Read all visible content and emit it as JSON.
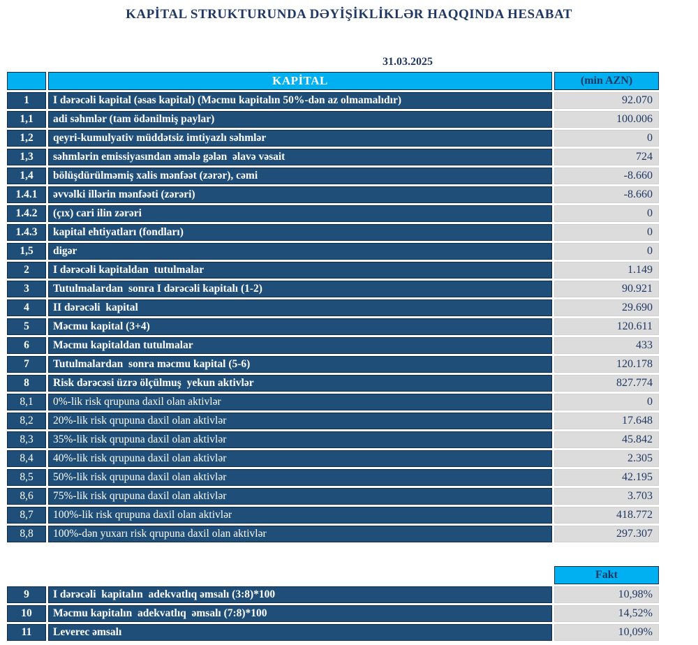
{
  "report": {
    "title": "KAPİTAL STRUKTURUNDA DƏYİŞİKLİKLƏR HAQQINDA HESABAT",
    "date": "31.03.2025"
  },
  "colors": {
    "header_cyan": "#00b0f0",
    "row_navy": "#1f4e79",
    "value_gray": "#dcdcdc",
    "text_navy": "#1f3864",
    "text_white": "#ffffff"
  },
  "table": {
    "header": {
      "number": "",
      "capital": "KAPİTAL",
      "unit": "(min AZN)"
    },
    "rows": [
      {
        "num": "1",
        "label": "I dərəcəli kapital (əsas kapital) (Məcmu kapitalın 50%-dən az olmamalıdır)",
        "value": "92.070",
        "bold": true
      },
      {
        "num": "1,1",
        "label": "adi səhmlər (tam ödənilmiş paylar)",
        "value": "100.006",
        "bold": true
      },
      {
        "num": "1,2",
        "label": "qeyri-kumulyativ müddətsiz imtiyazlı səhmlər",
        "value": "0",
        "bold": true
      },
      {
        "num": "1,3",
        "label": "səhmlərin emissiyasından əmələ gələn  əlavə vəsait",
        "value": "724",
        "bold": true
      },
      {
        "num": "1,4",
        "label": "bölüşdürülməmiş xalis mənfəət (zərər), cəmi",
        "value": "-8.660",
        "bold": true
      },
      {
        "num": "1.4.1",
        "label": "əvvəlki illərin mənfəəti (zərəri)",
        "value": "-8.660",
        "bold": true
      },
      {
        "num": "1.4.2",
        "label": "(çıx) cari ilin zərəri",
        "value": "0",
        "bold": true
      },
      {
        "num": "1.4.3",
        "label": "kapital ehtiyatları (fondları)",
        "value": "0",
        "bold": true
      },
      {
        "num": "1,5",
        "label": "digər",
        "value": "0",
        "bold": true
      },
      {
        "num": "2",
        "label": "I dərəcəli kapitaldan  tutulmalar",
        "value": "1.149",
        "bold": true
      },
      {
        "num": "3",
        "label": "Tutulmalardan  sonra I dərəcəli kapitalı (1-2)",
        "value": "90.921",
        "bold": true
      },
      {
        "num": "4",
        "label": "II dərəcəli  kapital",
        "value": "29.690",
        "bold": true
      },
      {
        "num": "5",
        "label": "Məcmu kapital (3+4)",
        "value": "120.611",
        "bold": true
      },
      {
        "num": "6",
        "label": "Məcmu kapitaldan tutulmalar",
        "value": "433",
        "bold": true
      },
      {
        "num": "7",
        "label": "Tutulmalardan  sonra məcmu kapital (5-6)",
        "value": "120.178",
        "bold": true
      },
      {
        "num": "8",
        "label": "Risk dərəcəsi üzrə ölçülmuş  yekun aktivlər",
        "value": "827.774",
        "bold": true
      },
      {
        "num": "8,1",
        "label": "0%-lik risk qrupuna daxil olan aktivlər",
        "value": "0",
        "bold": false
      },
      {
        "num": "8,2",
        "label": "20%-lik risk qrupuna daxil olan aktivlər",
        "value": "17.648",
        "bold": false
      },
      {
        "num": "8,3",
        "label": "35%-lik risk qrupuna daxil olan aktivlər",
        "value": "45.842",
        "bold": false
      },
      {
        "num": "8,4",
        "label": "40%-lik risk qrupuna daxil olan aktivlər",
        "value": "2.305",
        "bold": false
      },
      {
        "num": "8,5",
        "label": "50%-lik risk qrupuna daxil olan aktivlər",
        "value": "42.195",
        "bold": false
      },
      {
        "num": "8,6",
        "label": "75%-lik risk qrupuna daxil olan aktivlər",
        "value": "3.703",
        "bold": false
      },
      {
        "num": "8,7",
        "label": "100%-lik risk qrupuna daxil olan aktivlər",
        "value": "418.772",
        "bold": false
      },
      {
        "num": "8,8",
        "label": "100%-dən yuxarı risk qrupuna daxil olan aktivlər",
        "value": "297.307",
        "bold": false
      }
    ]
  },
  "ratios": {
    "header": {
      "fakt": "Fakt"
    },
    "rows": [
      {
        "num": "9",
        "label": "I dərəcəli  kapitalın  adekvatlıq əmsalı (3:8)*100",
        "value": "10,98%",
        "bold": true
      },
      {
        "num": "10",
        "label": "Məcmu kapitalın  adekvatlıq  əmsalı (7:8)*100",
        "value": "14,52%",
        "bold": true
      },
      {
        "num": "11",
        "label": "Leverec əmsalı",
        "value": "10,09%",
        "bold": true
      }
    ]
  }
}
